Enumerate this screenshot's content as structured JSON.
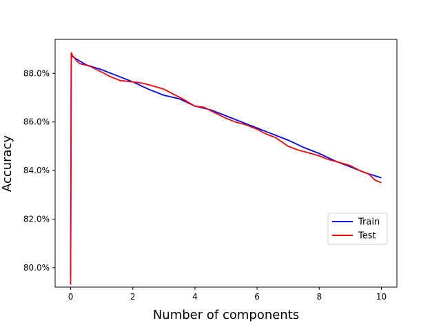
{
  "chart_data": {
    "type": "line",
    "xlabel": "Number of components",
    "ylabel": "Accuracy",
    "xlim": [
      -0.5,
      10.5
    ],
    "ylim": [
      79.2,
      89.4
    ],
    "xticks": [
      0,
      2,
      4,
      6,
      8,
      10
    ],
    "yticks": [
      80.0,
      82.0,
      84.0,
      86.0,
      88.0
    ],
    "ytick_labels": [
      "80.0%",
      "82.0%",
      "84.0%",
      "86.0%",
      "88.0%"
    ],
    "grid": false,
    "legend_position": "lower-right",
    "series": [
      {
        "name": "Train",
        "color": "#0000ff",
        "x": [
          0,
          0.02,
          0.05,
          0.3,
          0.5,
          1.0,
          1.5,
          2.0,
          2.5,
          3.0,
          3.5,
          4.0,
          4.5,
          5.0,
          5.5,
          6.0,
          6.5,
          7.0,
          7.5,
          8.0,
          8.5,
          9.0,
          9.5,
          10.0
        ],
        "y": [
          79.7,
          88.8,
          88.7,
          88.5,
          88.35,
          88.15,
          87.9,
          87.65,
          87.35,
          87.1,
          86.95,
          86.65,
          86.5,
          86.25,
          86.0,
          85.75,
          85.5,
          85.25,
          84.95,
          84.7,
          84.4,
          84.15,
          83.9,
          83.7
        ]
      },
      {
        "name": "Test",
        "color": "#ff0000",
        "x": [
          0,
          0.02,
          0.05,
          0.2,
          0.3,
          0.6,
          1.0,
          1.3,
          1.6,
          2.0,
          2.3,
          2.6,
          3.0,
          3.3,
          3.6,
          4.0,
          4.3,
          4.6,
          5.0,
          5.3,
          5.6,
          6.0,
          6.3,
          6.6,
          7.0,
          7.3,
          7.6,
          8.0,
          8.3,
          8.6,
          9.0,
          9.3,
          9.6,
          9.8,
          10.0
        ],
        "y": [
          79.3,
          88.85,
          88.75,
          88.5,
          88.4,
          88.3,
          88.05,
          87.85,
          87.7,
          87.65,
          87.6,
          87.5,
          87.35,
          87.15,
          86.95,
          86.65,
          86.6,
          86.4,
          86.15,
          86.0,
          85.9,
          85.7,
          85.5,
          85.35,
          85.0,
          84.85,
          84.75,
          84.6,
          84.45,
          84.35,
          84.2,
          84.0,
          83.85,
          83.6,
          83.5
        ]
      }
    ]
  }
}
